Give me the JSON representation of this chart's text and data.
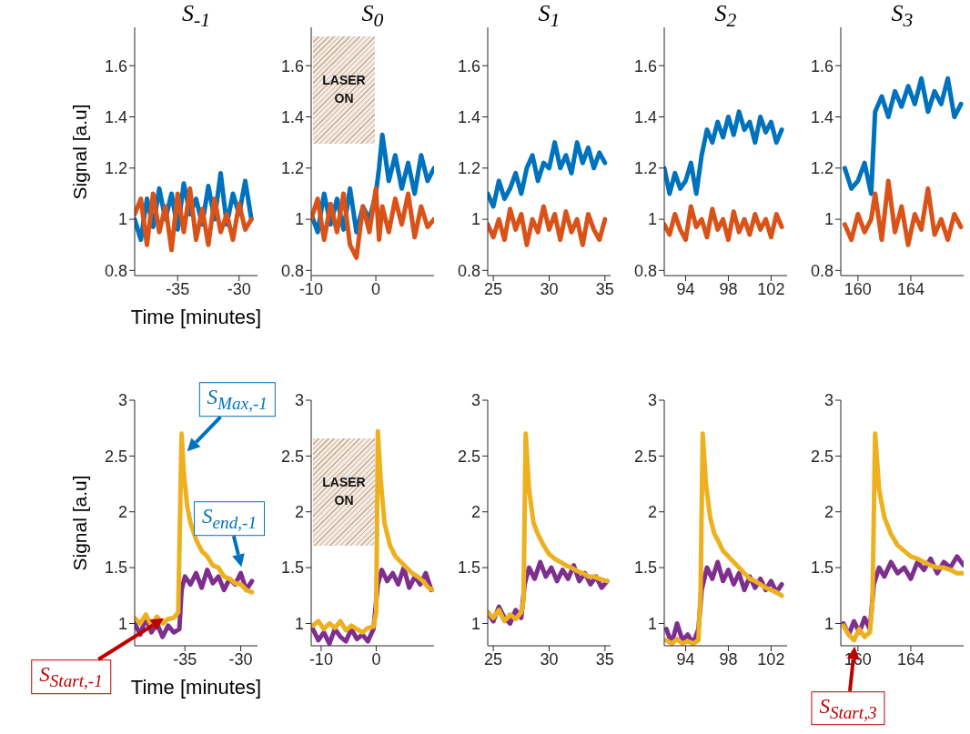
{
  "chart_data": [
    {
      "type": "line",
      "title": "S$_{-1}$",
      "xlabel": "Time [minutes]",
      "ylabel": "Signal [a.u]",
      "xlim": [
        -38.5,
        -28.5
      ],
      "xticks": [
        -35,
        -30
      ],
      "ylim": [
        0.78,
        1.75
      ],
      "yticks": [
        0.8,
        1,
        1.2,
        1.4,
        1.6
      ],
      "series": [
        {
          "color": "#0072bd",
          "x": [
            -38.5,
            -38,
            -37.5,
            -37,
            -36.5,
            -36,
            -35.5,
            -35,
            -34.5,
            -34,
            -33.5,
            -33,
            -32.5,
            -32,
            -31.5,
            -31,
            -30.5,
            -30,
            -29.5,
            -29
          ],
          "values": [
            1.0,
            0.92,
            1.08,
            0.97,
            1.12,
            1.0,
            1.1,
            0.96,
            1.14,
            1.02,
            1.08,
            0.98,
            1.13,
            1.0,
            1.18,
            0.98,
            1.1,
            1.02,
            1.15,
            1.0
          ]
        },
        {
          "color": "#d95319",
          "x": [
            -38.5,
            -38,
            -37.5,
            -37,
            -36.5,
            -36,
            -35.5,
            -35,
            -34.5,
            -34,
            -33.5,
            -33,
            -32.5,
            -32,
            -31.5,
            -31,
            -30.5,
            -30,
            -29.5,
            -29
          ],
          "values": [
            1.02,
            1.08,
            0.9,
            1.1,
            0.95,
            1.05,
            0.88,
            1.1,
            0.95,
            1.12,
            0.92,
            1.04,
            0.9,
            1.08,
            0.95,
            1.02,
            0.92,
            1.06,
            0.96,
            1.0
          ]
        }
      ]
    },
    {
      "type": "line",
      "title": "S$_{0}$",
      "xlim": [
        -10,
        9
      ],
      "xticks": [
        -10,
        0
      ],
      "ylim": [
        0.78,
        1.75
      ],
      "yticks": [
        0.8,
        1,
        1.2,
        1.4,
        1.6
      ],
      "annotations": [
        "LASER ON"
      ],
      "series": [
        {
          "color": "#0072bd",
          "x": [
            -10,
            -9,
            -8,
            -7,
            -6,
            -5,
            -4,
            -3,
            -2,
            -1,
            0,
            0.5,
            1,
            2,
            3,
            4,
            5,
            6,
            7,
            8,
            9
          ],
          "values": [
            1.02,
            0.95,
            1.1,
            0.98,
            1.08,
            0.96,
            1.12,
            0.95,
            1.05,
            1.0,
            1.1,
            1.2,
            1.33,
            1.15,
            1.25,
            1.12,
            1.22,
            1.1,
            1.25,
            1.15,
            1.2
          ]
        },
        {
          "color": "#d95319",
          "x": [
            -10,
            -9,
            -8,
            -7,
            -6,
            -5,
            -4,
            -3,
            -2,
            -1,
            0,
            0.5,
            1,
            2,
            3,
            4,
            5,
            6,
            7,
            8,
            9
          ],
          "values": [
            1.0,
            1.08,
            0.92,
            1.06,
            0.95,
            1.1,
            0.9,
            0.85,
            1.05,
            0.95,
            1.12,
            0.92,
            1.05,
            0.95,
            1.08,
            0.98,
            1.1,
            0.93,
            1.05,
            0.97,
            1.0
          ]
        }
      ]
    },
    {
      "type": "line",
      "title": "S$_{1}$",
      "xlim": [
        24.5,
        35.5
      ],
      "xticks": [
        25,
        30,
        35
      ],
      "ylim": [
        0.78,
        1.75
      ],
      "yticks": [
        0.8,
        1,
        1.2,
        1.4,
        1.6
      ],
      "series": [
        {
          "color": "#0072bd",
          "x": [
            24.5,
            25,
            25.5,
            26,
            26.5,
            27,
            27.5,
            28,
            28.5,
            29,
            29.5,
            30,
            30.5,
            31,
            31.5,
            32,
            32.5,
            33,
            33.5,
            34,
            34.5,
            35
          ],
          "values": [
            1.1,
            1.05,
            1.15,
            1.08,
            1.12,
            1.18,
            1.1,
            1.2,
            1.25,
            1.15,
            1.22,
            1.2,
            1.3,
            1.2,
            1.25,
            1.18,
            1.3,
            1.22,
            1.28,
            1.2,
            1.26,
            1.22
          ]
        },
        {
          "color": "#d95319",
          "x": [
            24.5,
            25,
            25.5,
            26,
            26.5,
            27,
            27.5,
            28,
            28.5,
            29,
            29.5,
            30,
            30.5,
            31,
            31.5,
            32,
            32.5,
            33,
            33.5,
            34,
            34.5,
            35
          ],
          "values": [
            0.98,
            0.93,
            1.0,
            0.92,
            1.04,
            0.96,
            1.02,
            0.9,
            1.0,
            0.95,
            1.05,
            0.96,
            1.02,
            0.92,
            1.03,
            0.95,
            1.0,
            0.9,
            1.02,
            0.96,
            0.92,
            1.0
          ]
        }
      ]
    },
    {
      "type": "line",
      "title": "S$_{2}$",
      "xlim": [
        92,
        103.5
      ],
      "xticks": [
        94,
        98,
        102
      ],
      "ylim": [
        0.78,
        1.75
      ],
      "yticks": [
        0.8,
        1,
        1.2,
        1.4,
        1.6
      ],
      "series": [
        {
          "color": "#0072bd",
          "x": [
            92,
            92.5,
            93,
            93.5,
            94,
            94.5,
            95,
            95.5,
            96,
            96.5,
            97,
            97.5,
            98,
            98.5,
            99,
            99.5,
            100,
            100.5,
            101,
            101.5,
            102,
            102.5,
            103
          ],
          "values": [
            1.2,
            1.1,
            1.18,
            1.12,
            1.15,
            1.22,
            1.1,
            1.25,
            1.35,
            1.3,
            1.38,
            1.32,
            1.4,
            1.33,
            1.42,
            1.35,
            1.38,
            1.3,
            1.4,
            1.34,
            1.38,
            1.3,
            1.35
          ]
        },
        {
          "color": "#d95319",
          "x": [
            92,
            92.5,
            93,
            93.5,
            94,
            94.5,
            95,
            95.5,
            96,
            96.5,
            97,
            97.5,
            98,
            98.5,
            99,
            99.5,
            100,
            100.5,
            101,
            101.5,
            102,
            102.5,
            103
          ],
          "values": [
            0.98,
            0.94,
            1.02,
            0.96,
            0.92,
            1.05,
            0.97,
            1.0,
            0.93,
            1.04,
            0.96,
            1.0,
            0.92,
            1.03,
            0.95,
            1.0,
            0.94,
            1.02,
            0.96,
            1.0,
            0.93,
            1.02,
            0.97
          ]
        }
      ]
    },
    {
      "type": "line",
      "title": "S$_{3}$",
      "xlim": [
        158.7,
        168
      ],
      "xticks": [
        160,
        164
      ],
      "ylim": [
        0.78,
        1.75
      ],
      "yticks": [
        0.8,
        1,
        1.2,
        1.4,
        1.6
      ],
      "series": [
        {
          "color": "#0072bd",
          "x": [
            159,
            159.5,
            160,
            160.5,
            161,
            161.3,
            161.8,
            162.3,
            162.8,
            163.3,
            163.8,
            164.3,
            164.8,
            165.3,
            165.8,
            166.3,
            166.8,
            167.3,
            167.8
          ],
          "values": [
            1.2,
            1.12,
            1.15,
            1.22,
            1.1,
            1.42,
            1.48,
            1.4,
            1.5,
            1.44,
            1.52,
            1.45,
            1.55,
            1.42,
            1.5,
            1.45,
            1.55,
            1.4,
            1.45
          ]
        },
        {
          "color": "#d95319",
          "x": [
            159,
            159.5,
            160,
            160.5,
            161,
            161.3,
            161.8,
            162.3,
            162.8,
            163.3,
            163.8,
            164.3,
            164.8,
            165.3,
            165.8,
            166.3,
            166.8,
            167.3,
            167.8
          ],
          "values": [
            0.98,
            0.92,
            1.02,
            0.95,
            1.0,
            1.1,
            0.92,
            1.15,
            0.95,
            1.05,
            0.9,
            1.02,
            0.96,
            1.12,
            0.94,
            1.0,
            0.92,
            1.02,
            0.97
          ]
        }
      ]
    },
    {
      "type": "line",
      "xlabel": "Time [minutes]",
      "ylabel": "Signal [a.u]",
      "xlim": [
        -39.5,
        -28.5
      ],
      "xticks": [
        -35,
        -30
      ],
      "ylim": [
        0.8,
        3
      ],
      "yticks": [
        1,
        1.5,
        2,
        2.5,
        3
      ],
      "annotations": [
        {
          "text": "S$_{Max,-1}$",
          "x": -35.2,
          "y": 2.5
        },
        {
          "text": "S$_{end,-1}$",
          "x": -29.8,
          "y": 1.45
        },
        "S$_{Start,-1}$"
      ],
      "series": [
        {
          "color": "#7e2f8e",
          "x": [
            -39.5,
            -39,
            -38.5,
            -38,
            -37.5,
            -37,
            -36.5,
            -36,
            -35.5,
            -35.3,
            -35,
            -34.5,
            -34,
            -33.5,
            -33,
            -32.5,
            -32,
            -31.5,
            -31,
            -30.5,
            -30,
            -29.5,
            -29
          ],
          "values": [
            1.0,
            0.9,
            1.05,
            0.92,
            1.0,
            0.88,
            0.98,
            0.92,
            0.95,
            1.3,
            1.42,
            1.35,
            1.45,
            1.32,
            1.48,
            1.36,
            1.42,
            1.3,
            1.4,
            1.35,
            1.45,
            1.3,
            1.38
          ]
        },
        {
          "color": "#edb120",
          "x": [
            -39.5,
            -39,
            -38.5,
            -38,
            -37.5,
            -37,
            -36.5,
            -36,
            -35.6,
            -35.3,
            -35.1,
            -34.8,
            -34.5,
            -34,
            -33.5,
            -33,
            -32.5,
            -32,
            -31.5,
            -31,
            -30.5,
            -30,
            -29.5,
            -29
          ],
          "values": [
            1.05,
            1.0,
            1.08,
            0.98,
            1.06,
            1.0,
            1.04,
            1.05,
            1.1,
            2.7,
            2.35,
            2.05,
            1.9,
            1.75,
            1.65,
            1.6,
            1.52,
            1.5,
            1.42,
            1.4,
            1.36,
            1.35,
            1.3,
            1.28
          ]
        }
      ]
    },
    {
      "type": "line",
      "xlim": [
        -11.8,
        10.5
      ],
      "xticks": [
        -10,
        0
      ],
      "ylim": [
        0.8,
        3
      ],
      "yticks": [
        1,
        1.5,
        2,
        2.5,
        3
      ],
      "annotations": [
        "LASER ON"
      ],
      "series": [
        {
          "color": "#7e2f8e",
          "x": [
            -11.5,
            -10.5,
            -9.5,
            -8.5,
            -7.5,
            -6.5,
            -5.5,
            -4.5,
            -3.5,
            -2.5,
            -1.5,
            -0.5,
            0.3,
            1,
            2,
            3,
            4,
            5,
            6,
            7,
            8,
            9,
            10
          ],
          "values": [
            0.95,
            0.85,
            0.92,
            0.82,
            0.95,
            0.88,
            0.84,
            0.95,
            0.86,
            0.9,
            0.84,
            0.95,
            1.35,
            1.48,
            1.38,
            1.45,
            1.35,
            1.5,
            1.32,
            1.42,
            1.35,
            1.45,
            1.3
          ]
        },
        {
          "color": "#edb120",
          "x": [
            -11.5,
            -10.5,
            -9.5,
            -8.5,
            -7.5,
            -6.5,
            -5.5,
            -4.5,
            -3.5,
            -2.5,
            -1.5,
            -0.5,
            0,
            0.3,
            0.8,
            1.5,
            2.5,
            3.5,
            4.5,
            5.5,
            6.5,
            7.5,
            8.5,
            9.5,
            10.3
          ],
          "values": [
            0.98,
            1.02,
            0.95,
            1.0,
            0.96,
            1.02,
            0.94,
            0.98,
            0.95,
            0.92,
            0.96,
            0.97,
            1.1,
            2.72,
            2.3,
            1.9,
            1.7,
            1.6,
            1.55,
            1.5,
            1.45,
            1.42,
            1.38,
            1.32,
            1.3
          ]
        }
      ]
    },
    {
      "type": "line",
      "xlim": [
        24.5,
        35.5
      ],
      "xticks": [
        25,
        30,
        35
      ],
      "ylim": [
        0.8,
        3
      ],
      "yticks": [
        1,
        1.5,
        2,
        2.5,
        3
      ],
      "series": [
        {
          "color": "#7e2f8e",
          "x": [
            24.5,
            25,
            25.5,
            26,
            26.5,
            27,
            27.5,
            27.8,
            28.2,
            28.7,
            29.2,
            29.7,
            30.2,
            30.7,
            31.2,
            31.7,
            32.2,
            32.7,
            33.2,
            33.7,
            34.2,
            34.7,
            35.2
          ],
          "values": [
            1.1,
            1.02,
            1.15,
            1.05,
            1.0,
            1.12,
            1.05,
            1.35,
            1.5,
            1.4,
            1.55,
            1.42,
            1.5,
            1.38,
            1.48,
            1.4,
            1.52,
            1.38,
            1.45,
            1.35,
            1.42,
            1.32,
            1.38
          ]
        },
        {
          "color": "#edb120",
          "x": [
            24.5,
            25,
            25.5,
            26,
            26.5,
            27,
            27.5,
            27.7,
            27.9,
            28.2,
            28.6,
            29,
            29.5,
            30,
            30.5,
            31,
            31.5,
            32,
            32.5,
            33,
            33.5,
            34,
            34.5,
            35.2
          ],
          "values": [
            1.1,
            1.05,
            1.12,
            1.02,
            1.08,
            1.04,
            1.1,
            1.2,
            2.7,
            2.2,
            1.9,
            1.8,
            1.7,
            1.62,
            1.58,
            1.55,
            1.52,
            1.5,
            1.47,
            1.45,
            1.42,
            1.42,
            1.4,
            1.38
          ]
        }
      ]
    },
    {
      "type": "line",
      "xlim": [
        92,
        103.5
      ],
      "xticks": [
        94,
        98,
        102
      ],
      "ylim": [
        0.8,
        3
      ],
      "yticks": [
        1,
        1.5,
        2,
        2.5,
        3
      ],
      "series": [
        {
          "color": "#7e2f8e",
          "x": [
            92.2,
            92.7,
            93.2,
            93.7,
            94.2,
            94.7,
            95.2,
            95.5,
            96,
            96.5,
            97,
            97.5,
            98,
            98.5,
            99,
            99.5,
            100,
            100.5,
            101,
            101.5,
            102,
            102.5,
            103
          ],
          "values": [
            0.95,
            0.82,
            1.0,
            0.85,
            0.9,
            0.82,
            0.95,
            1.3,
            1.5,
            1.4,
            1.55,
            1.38,
            1.48,
            1.35,
            1.45,
            1.3,
            1.42,
            1.32,
            1.4,
            1.3,
            1.38,
            1.28,
            1.35
          ]
        },
        {
          "color": "#edb120",
          "x": [
            92.2,
            92.7,
            93.2,
            93.7,
            94.2,
            94.7,
            95.2,
            95.4,
            95.6,
            95.9,
            96.3,
            96.7,
            97,
            97.5,
            98,
            98.5,
            99,
            99.5,
            100,
            100.5,
            101,
            101.5,
            102,
            102.5,
            103
          ],
          "values": [
            0.85,
            0.82,
            0.86,
            0.82,
            0.84,
            0.82,
            0.85,
            1.3,
            2.7,
            2.25,
            1.95,
            1.8,
            1.75,
            1.65,
            1.6,
            1.55,
            1.5,
            1.45,
            1.4,
            1.38,
            1.35,
            1.32,
            1.3,
            1.28,
            1.25
          ]
        }
      ]
    },
    {
      "type": "line",
      "xlim": [
        158.7,
        168
      ],
      "xticks": [
        160,
        164
      ],
      "ylim": [
        0.8,
        3
      ],
      "yticks": [
        1,
        1.5,
        2,
        2.5,
        3
      ],
      "annotations": [
        {
          "text": "S$_{Start,3}$",
          "x": 159.8,
          "y": 0.85
        }
      ],
      "series": [
        {
          "color": "#7e2f8e",
          "x": [
            158.9,
            159.3,
            159.7,
            160.1,
            160.5,
            160.9,
            161.2,
            161.6,
            162,
            162.5,
            163,
            163.5,
            164,
            164.5,
            165,
            165.5,
            166,
            166.5,
            167,
            167.5,
            168
          ],
          "values": [
            1.0,
            0.9,
            1.02,
            0.92,
            1.05,
            0.95,
            1.35,
            1.5,
            1.42,
            1.55,
            1.45,
            1.5,
            1.4,
            1.55,
            1.48,
            1.58,
            1.45,
            1.55,
            1.5,
            1.6,
            1.52
          ]
        },
        {
          "color": "#edb120",
          "x": [
            158.9,
            159.3,
            159.7,
            160.1,
            160.5,
            160.9,
            161.1,
            161.3,
            161.6,
            162,
            162.5,
            163,
            163.5,
            164,
            164.5,
            165,
            165.5,
            166,
            166.5,
            167,
            167.5,
            168
          ],
          "values": [
            0.98,
            0.9,
            0.85,
            0.95,
            0.88,
            0.92,
            1.2,
            2.7,
            2.2,
            1.95,
            1.8,
            1.7,
            1.65,
            1.6,
            1.58,
            1.55,
            1.52,
            1.5,
            1.5,
            1.48,
            1.45,
            1.45
          ]
        }
      ]
    }
  ]
}
